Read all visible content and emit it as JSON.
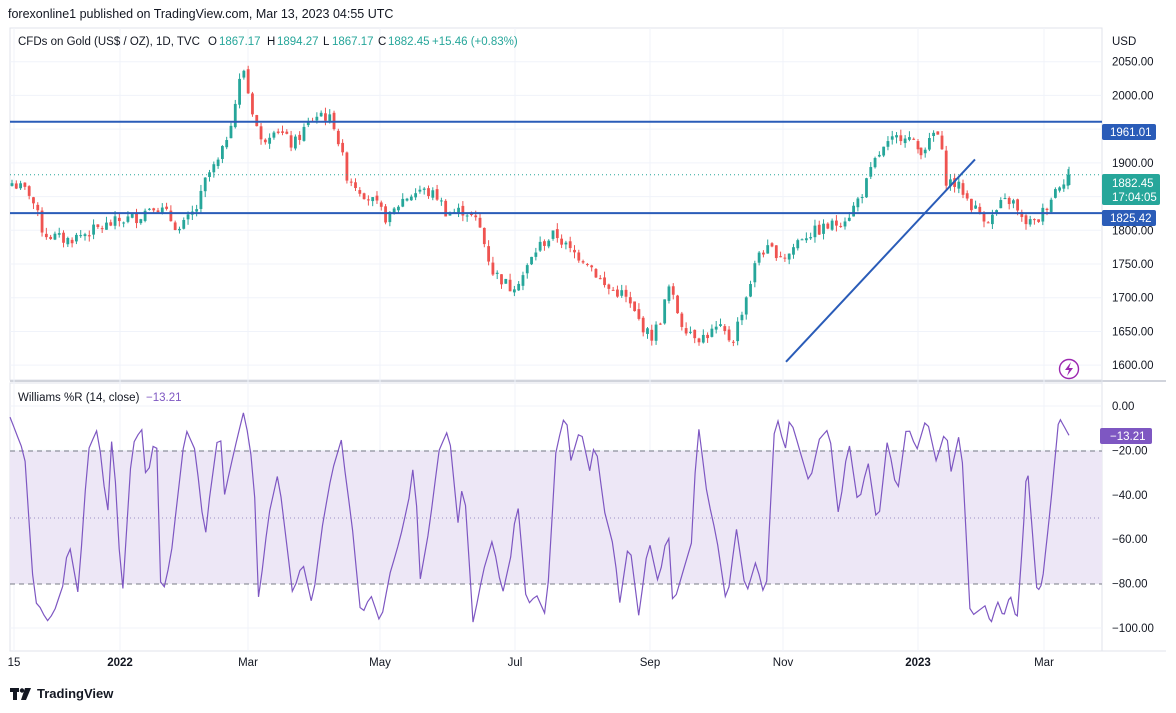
{
  "publisher": "forexonline1 published on TradingView.com, Mar 13, 2023 04:55 UTC",
  "legend": {
    "symbol": "CFDs on Gold (US$ / OZ), 1D, TVC",
    "o_label": "O",
    "o_value": "1867.17",
    "h_label": "H",
    "h_value": "1894.27",
    "l_label": "L",
    "l_value": "1867.17",
    "c_label": "C",
    "c_value": "1882.45",
    "change": "+15.46 (+0.83%)"
  },
  "currency": "USD",
  "footer": {
    "brand": "TradingView"
  },
  "colors": {
    "up": "#26a69a",
    "down": "#ef5350",
    "level_line": "#2a5cb8",
    "wr_line": "#7e57c2",
    "wr_band": "#ede7f6"
  },
  "chart_data": [
    {
      "type": "candlestick",
      "title": "CFDs on Gold (US$ / OZ), 1D, TVC",
      "x_tick_labels": [
        "15",
        "2022",
        "Mar",
        "May",
        "Jul",
        "Sep",
        "Nov",
        "2023",
        "Mar"
      ],
      "y_ticks": [
        1600,
        1650,
        1700,
        1750,
        1800,
        1850,
        1900,
        1950,
        2000,
        2050
      ],
      "y_tick_labels": [
        "1600.00",
        "1650.00",
        "1700.00",
        "1750.00",
        "1800.00",
        "",
        "1900.00",
        "1950.00",
        "2000.00",
        "2050.00"
      ],
      "ylim": [
        1578,
        2100
      ],
      "grid": true,
      "path_keypoints": [
        {
          "t": 0,
          "p": 1870
        },
        {
          "t": 0.02,
          "p": 1855
        },
        {
          "t": 0.035,
          "p": 1795
        },
        {
          "t": 0.06,
          "p": 1785
        },
        {
          "t": 0.09,
          "p": 1800
        },
        {
          "t": 0.12,
          "p": 1815
        },
        {
          "t": 0.14,
          "p": 1820
        },
        {
          "t": 0.155,
          "p": 1840
        },
        {
          "t": 0.17,
          "p": 1825
        },
        {
          "t": 0.185,
          "p": 1800
        },
        {
          "t": 0.205,
          "p": 1835
        },
        {
          "t": 0.215,
          "p": 1880
        },
        {
          "t": 0.23,
          "p": 1905
        },
        {
          "t": 0.245,
          "p": 1980
        },
        {
          "t": 0.255,
          "p": 2045
        },
        {
          "t": 0.262,
          "p": 1995
        },
        {
          "t": 0.275,
          "p": 1930
        },
        {
          "t": 0.29,
          "p": 1955
        },
        {
          "t": 0.31,
          "p": 1925
        },
        {
          "t": 0.325,
          "p": 1955
        },
        {
          "t": 0.34,
          "p": 1975
        },
        {
          "t": 0.355,
          "p": 1960
        },
        {
          "t": 0.37,
          "p": 1880
        },
        {
          "t": 0.385,
          "p": 1860
        },
        {
          "t": 0.4,
          "p": 1840
        },
        {
          "t": 0.415,
          "p": 1815
        },
        {
          "t": 0.43,
          "p": 1845
        },
        {
          "t": 0.45,
          "p": 1860
        },
        {
          "t": 0.47,
          "p": 1850
        },
        {
          "t": 0.48,
          "p": 1825
        },
        {
          "t": 0.5,
          "p": 1830
        },
        {
          "t": 0.515,
          "p": 1810
        },
        {
          "t": 0.53,
          "p": 1740
        },
        {
          "t": 0.55,
          "p": 1715
        },
        {
          "t": 0.565,
          "p": 1735
        },
        {
          "t": 0.58,
          "p": 1775
        },
        {
          "t": 0.6,
          "p": 1795
        },
        {
          "t": 0.615,
          "p": 1770
        },
        {
          "t": 0.635,
          "p": 1755
        },
        {
          "t": 0.655,
          "p": 1715
        },
        {
          "t": 0.675,
          "p": 1705
        },
        {
          "t": 0.69,
          "p": 1670
        },
        {
          "t": 0.705,
          "p": 1640
        },
        {
          "t": 0.715,
          "p": 1665
        },
        {
          "t": 0.725,
          "p": 1715
        },
        {
          "t": 0.74,
          "p": 1660
        },
        {
          "t": 0.76,
          "p": 1640
        },
        {
          "t": 0.78,
          "p": 1655
        },
        {
          "t": 0.795,
          "p": 1635
        },
        {
          "t": 0.81,
          "p": 1700
        },
        {
          "t": 0.825,
          "p": 1770
        },
        {
          "t": 0.84,
          "p": 1770
        },
        {
          "t": 0.855,
          "p": 1760
        },
        {
          "t": 0.87,
          "p": 1790
        },
        {
          "t": 0.89,
          "p": 1800
        },
        {
          "t": 0.91,
          "p": 1810
        },
        {
          "t": 0.925,
          "p": 1825
        },
        {
          "t": 0.94,
          "p": 1860
        },
        {
          "t": 0.955,
          "p": 1910
        },
        {
          "t": 0.97,
          "p": 1930
        },
        {
          "t": 0.985,
          "p": 1945
        },
        {
          "t": 1.0,
          "p": 1920
        }
      ],
      "path_keypoints_2023": [
        {
          "t": 0,
          "p": 1920
        },
        {
          "t": 0.06,
          "p": 1930
        },
        {
          "t": 0.1,
          "p": 1950
        },
        {
          "t": 0.13,
          "p": 1930
        },
        {
          "t": 0.17,
          "p": 1875
        },
        {
          "t": 0.22,
          "p": 1870
        },
        {
          "t": 0.28,
          "p": 1860
        },
        {
          "t": 0.33,
          "p": 1840
        },
        {
          "t": 0.4,
          "p": 1825
        },
        {
          "t": 0.47,
          "p": 1815
        },
        {
          "t": 0.55,
          "p": 1840
        },
        {
          "t": 0.62,
          "p": 1845
        },
        {
          "t": 0.68,
          "p": 1815
        },
        {
          "t": 0.78,
          "p": 1810
        },
        {
          "t": 0.85,
          "p": 1835
        },
        {
          "t": 0.93,
          "p": 1867
        },
        {
          "t": 1.0,
          "p": 1882
        }
      ],
      "horizontal_levels": [
        {
          "value": 1961.01,
          "label": "1961.01"
        },
        {
          "value": 1825.42,
          "label": "1825.42"
        }
      ],
      "last_price": {
        "value": 1882.45,
        "label": "1882.45",
        "countdown": "17:04:05"
      },
      "trendline": {
        "from": {
          "date": "Nov",
          "price": 1605
        },
        "to": {
          "date": "Feb 2023",
          "price": 1905
        }
      }
    },
    {
      "type": "line",
      "title": "Williams %R (14, close)",
      "series": [
        {
          "name": "Williams %R (14, close)",
          "last_value": -13.21,
          "last_label": "−13.21"
        }
      ],
      "y_ticks": [
        0,
        -20,
        -40,
        -60,
        -80,
        -100
      ],
      "y_tick_labels": [
        "0.00",
        "−20.00",
        "−40.00",
        "−60.00",
        "−80.00",
        "−100.00"
      ],
      "ylim": [
        -105,
        0
      ],
      "band": [
        -80,
        -20
      ],
      "value_label": "−13.21",
      "keypoints": [
        {
          "t": 0.0,
          "v": -5
        },
        {
          "t": 0.015,
          "v": -22
        },
        {
          "t": 0.025,
          "v": -88
        },
        {
          "t": 0.03,
          "v": -90
        },
        {
          "t": 0.038,
          "v": -97
        },
        {
          "t": 0.045,
          "v": -93
        },
        {
          "t": 0.055,
          "v": -80
        },
        {
          "t": 0.06,
          "v": -60
        },
        {
          "t": 0.07,
          "v": -85
        },
        {
          "t": 0.08,
          "v": -20
        },
        {
          "t": 0.09,
          "v": -10
        },
        {
          "t": 0.1,
          "v": -50
        },
        {
          "t": 0.105,
          "v": -10
        },
        {
          "t": 0.115,
          "v": -88
        },
        {
          "t": 0.125,
          "v": -18
        },
        {
          "t": 0.135,
          "v": -10
        },
        {
          "t": 0.14,
          "v": -35
        },
        {
          "t": 0.15,
          "v": -10
        },
        {
          "t": 0.155,
          "v": -88
        },
        {
          "t": 0.165,
          "v": -68
        },
        {
          "t": 0.18,
          "v": -10
        },
        {
          "t": 0.19,
          "v": -20
        },
        {
          "t": 0.2,
          "v": -60
        },
        {
          "t": 0.205,
          "v": -40
        },
        {
          "t": 0.215,
          "v": -8
        },
        {
          "t": 0.22,
          "v": -40
        },
        {
          "t": 0.23,
          "v": -20
        },
        {
          "t": 0.24,
          "v": -2
        },
        {
          "t": 0.25,
          "v": -30
        },
        {
          "t": 0.255,
          "v": -88
        },
        {
          "t": 0.265,
          "v": -50
        },
        {
          "t": 0.275,
          "v": -30
        },
        {
          "t": 0.29,
          "v": -85
        },
        {
          "t": 0.3,
          "v": -70
        },
        {
          "t": 0.31,
          "v": -90
        },
        {
          "t": 0.32,
          "v": -55
        },
        {
          "t": 0.33,
          "v": -30
        },
        {
          "t": 0.34,
          "v": -15
        },
        {
          "t": 0.345,
          "v": -35
        },
        {
          "t": 0.35,
          "v": -50
        },
        {
          "t": 0.36,
          "v": -95
        },
        {
          "t": 0.37,
          "v": -85
        },
        {
          "t": 0.38,
          "v": -98
        },
        {
          "t": 0.39,
          "v": -75
        },
        {
          "t": 0.4,
          "v": -60
        },
        {
          "t": 0.41,
          "v": -40
        },
        {
          "t": 0.415,
          "v": -22
        },
        {
          "t": 0.42,
          "v": -80
        },
        {
          "t": 0.43,
          "v": -55
        },
        {
          "t": 0.44,
          "v": -20
        },
        {
          "t": 0.45,
          "v": -10
        },
        {
          "t": 0.46,
          "v": -55
        },
        {
          "t": 0.465,
          "v": -30
        },
        {
          "t": 0.475,
          "v": -98
        },
        {
          "t": 0.485,
          "v": -75
        },
        {
          "t": 0.495,
          "v": -60
        },
        {
          "t": 0.505,
          "v": -85
        },
        {
          "t": 0.515,
          "v": -65
        },
        {
          "t": 0.52,
          "v": -40
        },
        {
          "t": 0.53,
          "v": -90
        },
        {
          "t": 0.54,
          "v": -85
        },
        {
          "t": 0.55,
          "v": -95
        },
        {
          "t": 0.56,
          "v": -20
        },
        {
          "t": 0.57,
          "v": -2
        },
        {
          "t": 0.575,
          "v": -25
        },
        {
          "t": 0.585,
          "v": -10
        },
        {
          "t": 0.595,
          "v": -30
        },
        {
          "t": 0.6,
          "v": -15
        },
        {
          "t": 0.61,
          "v": -48
        },
        {
          "t": 0.62,
          "v": -65
        },
        {
          "t": 0.625,
          "v": -90
        },
        {
          "t": 0.635,
          "v": -60
        },
        {
          "t": 0.645,
          "v": -95
        },
        {
          "t": 0.655,
          "v": -60
        },
        {
          "t": 0.665,
          "v": -80
        },
        {
          "t": 0.675,
          "v": -55
        },
        {
          "t": 0.68,
          "v": -90
        },
        {
          "t": 0.69,
          "v": -75
        },
        {
          "t": 0.7,
          "v": -60
        },
        {
          "t": 0.705,
          "v": -5
        },
        {
          "t": 0.715,
          "v": -40
        },
        {
          "t": 0.725,
          "v": -60
        },
        {
          "t": 0.735,
          "v": -90
        },
        {
          "t": 0.745,
          "v": -55
        },
        {
          "t": 0.755,
          "v": -85
        },
        {
          "t": 0.765,
          "v": -70
        },
        {
          "t": 0.775,
          "v": -88
        },
        {
          "t": 0.785,
          "v": -2
        },
        {
          "t": 0.795,
          "v": -20
        },
        {
          "t": 0.8,
          "v": -5
        },
        {
          "t": 0.81,
          "v": -20
        },
        {
          "t": 0.82,
          "v": -35
        },
        {
          "t": 0.83,
          "v": -15
        },
        {
          "t": 0.84,
          "v": -10
        },
        {
          "t": 0.85,
          "v": -50
        },
        {
          "t": 0.86,
          "v": -15
        },
        {
          "t": 0.87,
          "v": -45
        },
        {
          "t": 0.88,
          "v": -25
        },
        {
          "t": 0.89,
          "v": -55
        },
        {
          "t": 0.9,
          "v": -15
        },
        {
          "t": 0.91,
          "v": -40
        },
        {
          "t": 0.92,
          "v": -8
        },
        {
          "t": 0.93,
          "v": -20
        },
        {
          "t": 0.94,
          "v": -5
        },
        {
          "t": 0.95,
          "v": -25
        },
        {
          "t": 0.96,
          "v": -10
        },
        {
          "t": 0.965,
          "v": -30
        },
        {
          "t": 0.975,
          "v": -10
        },
        {
          "t": 0.985,
          "v": -95
        },
        {
          "t": 1.0,
          "v": -90
        }
      ],
      "keypoints_2023": [
        {
          "t": 0.0,
          "v": -90
        },
        {
          "t": 0.07,
          "v": -98
        },
        {
          "t": 0.15,
          "v": -88
        },
        {
          "t": 0.22,
          "v": -95
        },
        {
          "t": 0.3,
          "v": -85
        },
        {
          "t": 0.38,
          "v": -97
        },
        {
          "t": 0.45,
          "v": -60
        },
        {
          "t": 0.5,
          "v": -25
        },
        {
          "t": 0.55,
          "v": -50
        },
        {
          "t": 0.62,
          "v": -84
        },
        {
          "t": 0.68,
          "v": -80
        },
        {
          "t": 0.78,
          "v": -45
        },
        {
          "t": 0.88,
          "v": -5
        },
        {
          "t": 1.0,
          "v": -13.21
        }
      ]
    }
  ]
}
